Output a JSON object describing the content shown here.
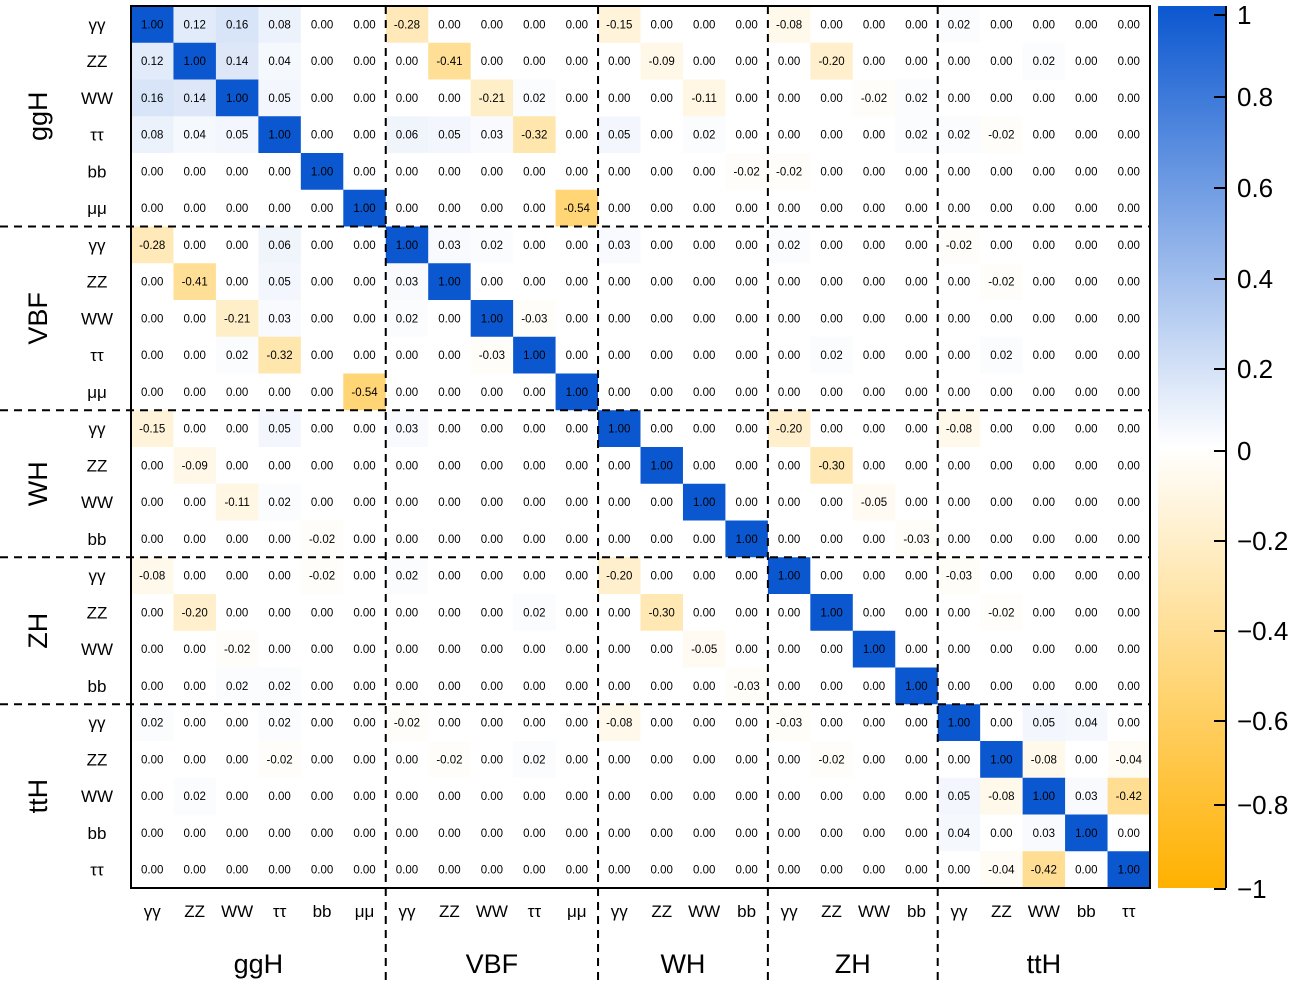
{
  "chart_data": {
    "type": "heatmap",
    "title": "",
    "groups": [
      {
        "name": "ggH",
        "labels": [
          "γγ",
          "ZZ",
          "WW",
          "ττ",
          "bb",
          "μμ"
        ]
      },
      {
        "name": "VBF",
        "labels": [
          "γγ",
          "ZZ",
          "WW",
          "ττ",
          "μμ"
        ]
      },
      {
        "name": "WH",
        "labels": [
          "γγ",
          "ZZ",
          "WW",
          "bb"
        ]
      },
      {
        "name": "ZH",
        "labels": [
          "γγ",
          "ZZ",
          "WW",
          "bb"
        ]
      },
      {
        "name": "ttH",
        "labels": [
          "γγ",
          "ZZ",
          "WW",
          "bb",
          "ττ"
        ]
      }
    ],
    "matrix": [
      [
        "1.00",
        "0.12",
        "0.16",
        "0.08",
        "0.00",
        "0.00",
        "-0.28",
        "0.00",
        "0.00",
        "0.00",
        "0.00",
        "-0.15",
        "0.00",
        "0.00",
        "0.00",
        "-0.08",
        "0.00",
        "0.00",
        "0.00",
        "0.02",
        "0.00",
        "0.00",
        "0.00",
        "0.00"
      ],
      [
        "0.12",
        "1.00",
        "0.14",
        "0.04",
        "0.00",
        "0.00",
        "0.00",
        "-0.41",
        "0.00",
        "0.00",
        "0.00",
        "0.00",
        "-0.09",
        "0.00",
        "0.00",
        "0.00",
        "-0.20",
        "0.00",
        "0.00",
        "0.00",
        "0.00",
        "0.02",
        "0.00",
        "0.00"
      ],
      [
        "0.16",
        "0.14",
        "1.00",
        "0.05",
        "0.00",
        "0.00",
        "0.00",
        "0.00",
        "-0.21",
        "0.02",
        "0.00",
        "0.00",
        "0.00",
        "-0.11",
        "0.00",
        "0.00",
        "0.00",
        "-0.02",
        "0.02",
        "0.00",
        "0.00",
        "0.00",
        "0.00",
        "0.00"
      ],
      [
        "0.08",
        "0.04",
        "0.05",
        "1.00",
        "0.00",
        "0.00",
        "0.06",
        "0.05",
        "0.03",
        "-0.32",
        "0.00",
        "0.05",
        "0.00",
        "0.02",
        "0.00",
        "0.00",
        "0.00",
        "0.00",
        "0.02",
        "0.02",
        "-0.02",
        "0.00",
        "0.00",
        "0.00"
      ],
      [
        "0.00",
        "0.00",
        "0.00",
        "0.00",
        "1.00",
        "0.00",
        "0.00",
        "0.00",
        "0.00",
        "0.00",
        "0.00",
        "0.00",
        "0.00",
        "0.00",
        "-0.02",
        "-0.02",
        "0.00",
        "0.00",
        "0.00",
        "0.00",
        "0.00",
        "0.00",
        "0.00",
        "0.00"
      ],
      [
        "0.00",
        "0.00",
        "0.00",
        "0.00",
        "0.00",
        "1.00",
        "0.00",
        "0.00",
        "0.00",
        "0.00",
        "-0.54",
        "0.00",
        "0.00",
        "0.00",
        "0.00",
        "0.00",
        "0.00",
        "0.00",
        "0.00",
        "0.00",
        "0.00",
        "0.00",
        "0.00",
        "0.00"
      ],
      [
        "-0.28",
        "0.00",
        "0.00",
        "0.06",
        "0.00",
        "0.00",
        "1.00",
        "0.03",
        "0.02",
        "0.00",
        "0.00",
        "0.03",
        "0.00",
        "0.00",
        "0.00",
        "0.02",
        "0.00",
        "0.00",
        "0.00",
        "-0.02",
        "0.00",
        "0.00",
        "0.00",
        "0.00"
      ],
      [
        "0.00",
        "-0.41",
        "0.00",
        "0.05",
        "0.00",
        "0.00",
        "0.03",
        "1.00",
        "0.00",
        "0.00",
        "0.00",
        "0.00",
        "0.00",
        "0.00",
        "0.00",
        "0.00",
        "0.00",
        "0.00",
        "0.00",
        "0.00",
        "-0.02",
        "0.00",
        "0.00",
        "0.00"
      ],
      [
        "0.00",
        "0.00",
        "-0.21",
        "0.03",
        "0.00",
        "0.00",
        "0.02",
        "0.00",
        "1.00",
        "-0.03",
        "0.00",
        "0.00",
        "0.00",
        "0.00",
        "0.00",
        "0.00",
        "0.00",
        "0.00",
        "0.00",
        "0.00",
        "0.00",
        "0.00",
        "0.00",
        "0.00"
      ],
      [
        "0.00",
        "0.00",
        "0.02",
        "-0.32",
        "0.00",
        "0.00",
        "0.00",
        "0.00",
        "-0.03",
        "1.00",
        "0.00",
        "0.00",
        "0.00",
        "0.00",
        "0.00",
        "0.00",
        "0.02",
        "0.00",
        "0.00",
        "0.00",
        "0.02",
        "0.00",
        "0.00",
        "0.00"
      ],
      [
        "0.00",
        "0.00",
        "0.00",
        "0.00",
        "0.00",
        "-0.54",
        "0.00",
        "0.00",
        "0.00",
        "0.00",
        "1.00",
        "0.00",
        "0.00",
        "0.00",
        "0.00",
        "0.00",
        "0.00",
        "0.00",
        "0.00",
        "0.00",
        "0.00",
        "0.00",
        "0.00",
        "0.00"
      ],
      [
        "-0.15",
        "0.00",
        "0.00",
        "0.05",
        "0.00",
        "0.00",
        "0.03",
        "0.00",
        "0.00",
        "0.00",
        "0.00",
        "1.00",
        "0.00",
        "0.00",
        "0.00",
        "-0.20",
        "0.00",
        "0.00",
        "0.00",
        "-0.08",
        "0.00",
        "0.00",
        "0.00",
        "0.00"
      ],
      [
        "0.00",
        "-0.09",
        "0.00",
        "0.00",
        "0.00",
        "0.00",
        "0.00",
        "0.00",
        "0.00",
        "0.00",
        "0.00",
        "0.00",
        "1.00",
        "0.00",
        "0.00",
        "0.00",
        "-0.30",
        "0.00",
        "0.00",
        "0.00",
        "0.00",
        "0.00",
        "0.00",
        "0.00"
      ],
      [
        "0.00",
        "0.00",
        "-0.11",
        "0.02",
        "0.00",
        "0.00",
        "0.00",
        "0.00",
        "0.00",
        "0.00",
        "0.00",
        "0.00",
        "0.00",
        "1.00",
        "0.00",
        "0.00",
        "0.00",
        "-0.05",
        "0.00",
        "0.00",
        "0.00",
        "0.00",
        "0.00",
        "0.00"
      ],
      [
        "0.00",
        "0.00",
        "0.00",
        "0.00",
        "-0.02",
        "0.00",
        "0.00",
        "0.00",
        "0.00",
        "0.00",
        "0.00",
        "0.00",
        "0.00",
        "0.00",
        "1.00",
        "0.00",
        "0.00",
        "0.00",
        "-0.03",
        "0.00",
        "0.00",
        "0.00",
        "0.00",
        "0.00"
      ],
      [
        "-0.08",
        "0.00",
        "0.00",
        "0.00",
        "-0.02",
        "0.00",
        "0.02",
        "0.00",
        "0.00",
        "0.00",
        "0.00",
        "-0.20",
        "0.00",
        "0.00",
        "0.00",
        "1.00",
        "0.00",
        "0.00",
        "0.00",
        "-0.03",
        "0.00",
        "0.00",
        "0.00",
        "0.00"
      ],
      [
        "0.00",
        "-0.20",
        "0.00",
        "0.00",
        "0.00",
        "0.00",
        "0.00",
        "0.00",
        "0.00",
        "0.02",
        "0.00",
        "0.00",
        "-0.30",
        "0.00",
        "0.00",
        "0.00",
        "1.00",
        "0.00",
        "0.00",
        "0.00",
        "-0.02",
        "0.00",
        "0.00",
        "0.00"
      ],
      [
        "0.00",
        "0.00",
        "-0.02",
        "0.00",
        "0.00",
        "0.00",
        "0.00",
        "0.00",
        "0.00",
        "0.00",
        "0.00",
        "0.00",
        "0.00",
        "-0.05",
        "0.00",
        "0.00",
        "0.00",
        "1.00",
        "0.00",
        "0.00",
        "0.00",
        "0.00",
        "0.00",
        "0.00"
      ],
      [
        "0.00",
        "0.00",
        "0.02",
        "0.02",
        "0.00",
        "0.00",
        "0.00",
        "0.00",
        "0.00",
        "0.00",
        "0.00",
        "0.00",
        "0.00",
        "0.00",
        "-0.03",
        "0.00",
        "0.00",
        "0.00",
        "1.00",
        "0.00",
        "0.00",
        "0.00",
        "0.00",
        "0.00"
      ],
      [
        "0.02",
        "0.00",
        "0.00",
        "0.02",
        "0.00",
        "0.00",
        "-0.02",
        "0.00",
        "0.00",
        "0.00",
        "0.00",
        "-0.08",
        "0.00",
        "0.00",
        "0.00",
        "-0.03",
        "0.00",
        "0.00",
        "0.00",
        "1.00",
        "0.00",
        "0.05",
        "0.04",
        "0.00"
      ],
      [
        "0.00",
        "0.00",
        "0.00",
        "-0.02",
        "0.00",
        "0.00",
        "0.00",
        "-0.02",
        "0.00",
        "0.02",
        "0.00",
        "0.00",
        "0.00",
        "0.00",
        "0.00",
        "0.00",
        "-0.02",
        "0.00",
        "0.00",
        "0.00",
        "1.00",
        "-0.08",
        "0.00",
        "-0.04"
      ],
      [
        "0.00",
        "0.02",
        "0.00",
        "0.00",
        "0.00",
        "0.00",
        "0.00",
        "0.00",
        "0.00",
        "0.00",
        "0.00",
        "0.00",
        "0.00",
        "0.00",
        "0.00",
        "0.00",
        "0.00",
        "0.00",
        "0.00",
        "0.05",
        "-0.08",
        "1.00",
        "0.03",
        "-0.42"
      ],
      [
        "0.00",
        "0.00",
        "0.00",
        "0.00",
        "0.00",
        "0.00",
        "0.00",
        "0.00",
        "0.00",
        "0.00",
        "0.00",
        "0.00",
        "0.00",
        "0.00",
        "0.00",
        "0.00",
        "0.00",
        "0.00",
        "0.00",
        "0.04",
        "0.00",
        "0.03",
        "1.00",
        "0.00"
      ],
      [
        "0.00",
        "0.00",
        "0.00",
        "0.00",
        "0.00",
        "0.00",
        "0.00",
        "0.00",
        "0.00",
        "0.00",
        "0.00",
        "0.00",
        "0.00",
        "0.00",
        "0.00",
        "0.00",
        "0.00",
        "0.00",
        "0.00",
        "0.00",
        "-0.04",
        "-0.42",
        "0.00",
        "1.00"
      ]
    ],
    "colorbar": {
      "range": [
        -1,
        1
      ],
      "ticks": [
        "1",
        "0.8",
        "0.6",
        "0.4",
        "0.2",
        "0",
        "−0.2",
        "−0.4",
        "−0.6",
        "−0.8",
        "−1"
      ],
      "colors": {
        "positive": "#0b57d0",
        "zero": "#ffffff",
        "negative": "#ffb100"
      }
    }
  }
}
